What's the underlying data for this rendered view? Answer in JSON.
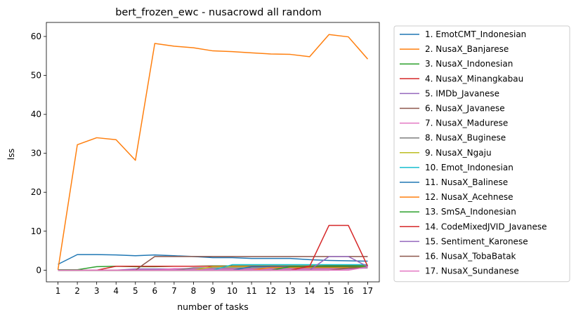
{
  "chart_data": {
    "type": "line",
    "title": "bert_frozen_ewc - nusacrowd all random",
    "xlabel": "number of tasks",
    "ylabel": "lss",
    "xlim": [
      0.4,
      17.6
    ],
    "ylim": [
      -3.0,
      63.6
    ],
    "x": [
      1,
      2,
      3,
      4,
      5,
      6,
      7,
      8,
      9,
      10,
      11,
      12,
      13,
      14,
      15,
      16,
      17
    ],
    "yticks": [
      0,
      10,
      20,
      30,
      40,
      50,
      60
    ],
    "legend_position": "outside-right",
    "grid": false,
    "series": [
      {
        "name": "1. EmotCMT_Indonesian",
        "color": "#1f77b4",
        "values": [
          1.5,
          4.0,
          4.0,
          3.9,
          3.7,
          3.9,
          3.7,
          3.5,
          3.2,
          3.2,
          3.0,
          3.0,
          3.0,
          2.7,
          2.5,
          2.4,
          2.3
        ]
      },
      {
        "name": "2. NusaX_Banjarese",
        "color": "#ff7f0e",
        "values": [
          0.1,
          32.2,
          34.0,
          33.5,
          28.2,
          58.2,
          57.5,
          57.1,
          56.3,
          56.1,
          55.8,
          55.5,
          55.4,
          54.8,
          60.5,
          59.9,
          54.2
        ]
      },
      {
        "name": "3. NusaX_Indonesian",
        "color": "#2ca02c",
        "values": [
          0.1,
          0.1,
          0.9,
          1.0,
          0.9,
          0.9,
          1.0,
          1.0,
          1.1,
          1.1,
          1.1,
          1.1,
          1.1,
          1.1,
          1.2,
          1.2,
          1.2
        ]
      },
      {
        "name": "4. NusaX_Minangkabau",
        "color": "#d62728",
        "values": [
          0.0,
          0.0,
          0.0,
          1.0,
          1.0,
          1.0,
          1.0,
          1.0,
          1.0,
          1.0,
          1.0,
          1.0,
          1.0,
          1.0,
          1.0,
          1.0,
          1.0
        ]
      },
      {
        "name": "5. IMDb_Javanese",
        "color": "#9467bd",
        "values": [
          0.0,
          0.0,
          0.0,
          0.0,
          0.3,
          0.3,
          0.3,
          0.3,
          0.3,
          0.3,
          0.3,
          0.3,
          0.3,
          0.3,
          0.3,
          0.3,
          0.6
        ]
      },
      {
        "name": "6. NusaX_Javanese",
        "color": "#8c564b",
        "values": [
          0.0,
          0.0,
          0.0,
          0.0,
          0.0,
          3.5,
          3.5,
          3.5,
          3.5,
          3.5,
          3.5,
          3.5,
          3.5,
          3.5,
          3.5,
          3.5,
          3.5
        ]
      },
      {
        "name": "7. NusaX_Madurese",
        "color": "#e377c2",
        "values": [
          0.0,
          0.0,
          0.0,
          0.0,
          0.0,
          0.0,
          0.4,
          0.4,
          0.4,
          0.4,
          0.4,
          0.4,
          0.4,
          0.4,
          0.4,
          0.4,
          0.8
        ]
      },
      {
        "name": "8. NusaX_Buginese",
        "color": "#7f7f7f",
        "values": [
          0.0,
          0.0,
          0.0,
          0.0,
          0.0,
          0.0,
          0.0,
          0.6,
          0.6,
          0.6,
          0.6,
          0.6,
          0.6,
          0.6,
          0.6,
          0.6,
          0.9
        ]
      },
      {
        "name": "9. NusaX_Ngaju",
        "color": "#bcbd22",
        "values": [
          0.0,
          0.0,
          0.0,
          0.0,
          0.0,
          0.0,
          0.0,
          0.0,
          0.9,
          0.9,
          0.9,
          0.9,
          0.9,
          0.9,
          0.9,
          0.9,
          1.0
        ]
      },
      {
        "name": "10. Emot_Indonesian",
        "color": "#17becf",
        "values": [
          0.0,
          0.0,
          0.0,
          0.0,
          0.0,
          0.0,
          0.0,
          0.0,
          0.0,
          1.4,
          1.4,
          1.4,
          1.4,
          1.4,
          1.4,
          1.4,
          1.4
        ]
      },
      {
        "name": "11. NusaX_Balinese",
        "color": "#1f77b4",
        "values": [
          0.0,
          0.0,
          0.0,
          0.0,
          0.0,
          0.0,
          0.0,
          0.0,
          0.0,
          0.0,
          0.9,
          0.9,
          0.9,
          0.9,
          0.9,
          0.9,
          0.9
        ]
      },
      {
        "name": "12. NusaX_Acehnese",
        "color": "#ff7f0e",
        "values": [
          0.0,
          0.0,
          0.0,
          0.0,
          0.0,
          0.0,
          0.0,
          0.0,
          0.0,
          0.0,
          0.0,
          0.7,
          0.7,
          0.7,
          0.7,
          0.7,
          0.8
        ]
      },
      {
        "name": "13. SmSA_Indonesian",
        "color": "#2ca02c",
        "values": [
          0.0,
          0.0,
          0.0,
          0.0,
          0.0,
          0.0,
          0.0,
          0.0,
          0.0,
          0.0,
          0.0,
          0.0,
          0.9,
          0.9,
          0.9,
          0.9,
          0.9
        ]
      },
      {
        "name": "14. CodeMixedJVID_Javanese",
        "color": "#d62728",
        "values": [
          0.0,
          0.0,
          0.0,
          0.0,
          0.0,
          0.0,
          0.0,
          0.0,
          0.0,
          0.0,
          0.0,
          0.0,
          0.0,
          1.0,
          11.5,
          11.5,
          1.0
        ]
      },
      {
        "name": "15. Sentiment_Karonese",
        "color": "#9467bd",
        "values": [
          0.0,
          0.0,
          0.0,
          0.0,
          0.0,
          0.0,
          0.0,
          0.0,
          0.0,
          0.0,
          0.0,
          0.0,
          0.0,
          0.0,
          3.5,
          3.5,
          0.9
        ]
      },
      {
        "name": "16. NusaX_TobaBatak",
        "color": "#8c564b",
        "values": [
          0.0,
          0.0,
          0.0,
          0.0,
          0.0,
          0.0,
          0.0,
          0.0,
          0.0,
          0.0,
          0.0,
          0.0,
          0.0,
          0.0,
          0.0,
          0.5,
          0.7
        ]
      },
      {
        "name": "17. NusaX_Sundanese",
        "color": "#e377c2",
        "values": [
          0.0,
          0.0,
          0.0,
          0.0,
          0.0,
          0.0,
          0.0,
          0.0,
          0.0,
          0.0,
          0.0,
          0.0,
          0.0,
          0.0,
          0.0,
          0.0,
          0.8
        ]
      }
    ]
  }
}
